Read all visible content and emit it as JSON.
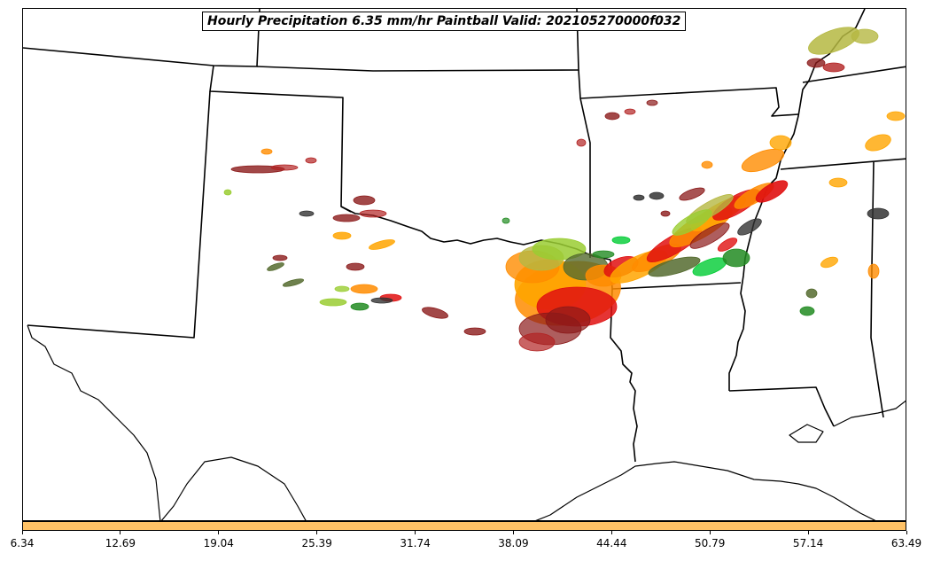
{
  "title": "Hourly Precipitation 6.35 mm/hr Paintball Valid: 202105270000f032",
  "colorbar": {
    "color": "#ffc266",
    "ticks": [
      "6.34",
      "12.69",
      "19.04",
      "25.39",
      "31.74",
      "38.09",
      "44.44",
      "50.79",
      "57.14",
      "63.49"
    ]
  },
  "member_colors": [
    "#8b1a1a",
    "#b22222",
    "#ff8c00",
    "#ffa500",
    "#e01010",
    "#228b22",
    "#00cc33",
    "#556b2f",
    "#9acd32",
    "#b5b842",
    "#333333"
  ]
}
